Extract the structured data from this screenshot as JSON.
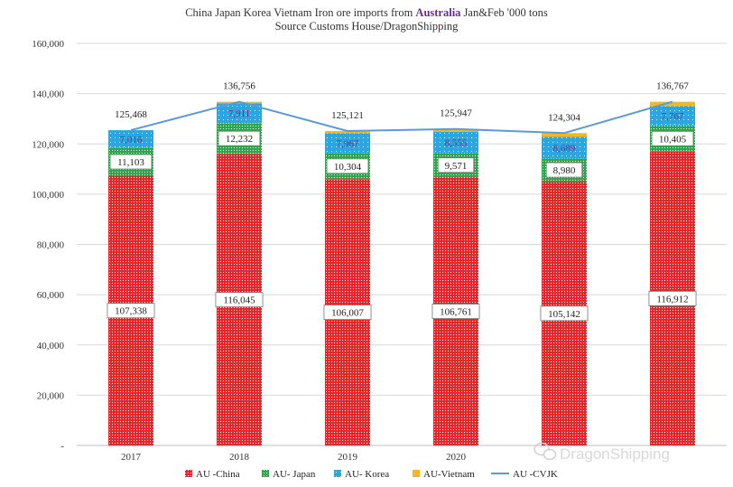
{
  "chart_data": {
    "type": "bar",
    "stacked": true,
    "title_parts": [
      "China Japan Korea Vietnam Iron ore imports from ",
      "Australia",
      " Jan&Feb '000 tons"
    ],
    "subtitle": "Source Customs House/DragonShipping",
    "categories": [
      "2017",
      "2018",
      "2019",
      "2020",
      "",
      ""
    ],
    "series": [
      {
        "name": "AU -China",
        "color": "#e8262a",
        "values": [
          107338,
          116045,
          106007,
          106761,
          105142,
          116912
        ],
        "labels": [
          "107,338",
          "116,045",
          "106,007",
          "106,761",
          "105,142",
          "116,912"
        ]
      },
      {
        "name": "AU- Japan",
        "color": "#2aa84a",
        "values": [
          11103,
          12232,
          10304,
          9571,
          8980,
          10405
        ],
        "labels": [
          "11,103",
          "12,232",
          "10,304",
          "9,571",
          "8,980",
          "10,405"
        ]
      },
      {
        "name": "AU- Korea",
        "color": "#2aa7e0",
        "values": [
          7016,
          7911,
          7967,
          8555,
          8689,
          7767
        ],
        "labels": [
          "7,016",
          "7,911",
          "7,967",
          "8,555",
          "8,689",
          "7,767"
        ]
      },
      {
        "name": "AU-Vietnam",
        "color": "#f2b824",
        "values": [
          11,
          568,
          843,
          1060,
          1493,
          1683
        ],
        "labels": [
          "",
          "",
          "",
          "",
          "",
          ""
        ]
      }
    ],
    "line": {
      "name": "AU -CVJK",
      "color": "#5b9bd5",
      "values": [
        125468,
        136756,
        125121,
        125947,
        124304,
        136767
      ],
      "labels": [
        "125,468",
        "136,756",
        "125,121",
        "125,947",
        "124,304",
        "136,767"
      ]
    },
    "ylim": [
      0,
      160000
    ],
    "yticks": [
      0,
      20000,
      40000,
      60000,
      80000,
      100000,
      120000,
      140000,
      160000
    ],
    "ytick_labels": [
      "-",
      "20,000",
      "40,000",
      "60,000",
      "80,000",
      "100,000",
      "120,000",
      "140,000",
      "160,000"
    ],
    "grid": true,
    "legend_position": "bottom"
  },
  "watermark": {
    "text": "DragonShipping",
    "icon": "wechat-icon"
  }
}
